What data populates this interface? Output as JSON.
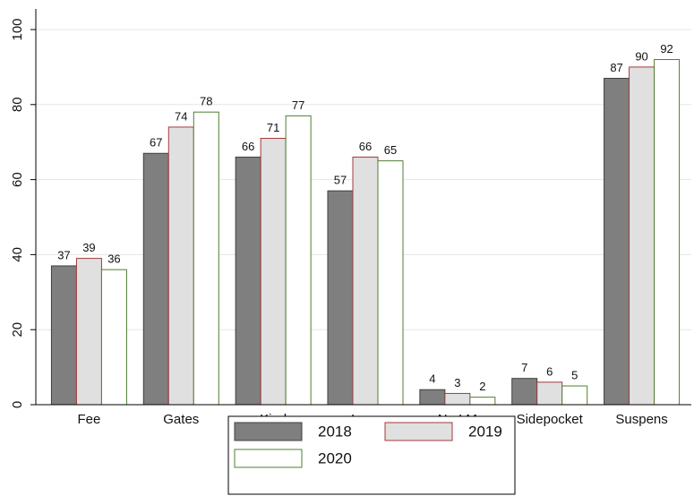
{
  "chart_data": {
    "type": "bar",
    "categories": [
      "Fee",
      "Gates",
      "Kind",
      "Levy",
      "No LM",
      "Sidepocket",
      "Suspens"
    ],
    "series": [
      {
        "name": "2018",
        "color": "#7f7f7f",
        "stroke": "#3f3f3f",
        "values": [
          37,
          67,
          66,
          57,
          4,
          7,
          87
        ]
      },
      {
        "name": "2019",
        "color": "#e0e0e0",
        "stroke": "#a33a3a",
        "values": [
          39,
          74,
          71,
          66,
          3,
          6,
          90
        ]
      },
      {
        "name": "2020",
        "color": "#ffffff",
        "stroke": "#4f7f2f",
        "values": [
          36,
          78,
          77,
          65,
          2,
          5,
          92
        ]
      }
    ],
    "ylim": [
      0,
      100
    ],
    "yticks": [
      0,
      20,
      40,
      60,
      80,
      100
    ],
    "grid": true,
    "legend": "bottom"
  }
}
